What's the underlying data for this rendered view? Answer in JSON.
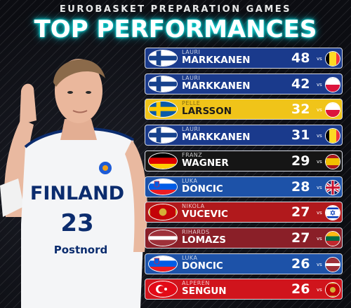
{
  "header": {
    "supertitle": "EUROBASKET PREPARATION GAMES",
    "title": "TOP PERFORMANCES"
  },
  "player": {
    "jersey_team": "FINLAND",
    "jersey_number": "23",
    "sponsor": "Postnord"
  },
  "performances": [
    {
      "first": "LAURI",
      "last": "MARKKANEN",
      "points": "48",
      "vs": "vs",
      "flag": "finland-flag-icon",
      "opponent": "belgium-flag-icon",
      "bg": "#1a3a8c"
    },
    {
      "first": "LAURI",
      "last": "MARKKANEN",
      "points": "42",
      "vs": "vs",
      "flag": "finland-flag-icon",
      "opponent": "poland-flag-icon",
      "bg": "#1a3a8c"
    },
    {
      "first": "PELLE",
      "last": "LARSSON",
      "points": "32",
      "vs": "vs",
      "flag": "sweden-flag-icon",
      "opponent": "poland-flag-icon",
      "bg": "#f0c419"
    },
    {
      "first": "LAURI",
      "last": "MARKKANEN",
      "points": "31",
      "vs": "vs",
      "flag": "finland-flag-icon",
      "opponent": "belgium-flag-icon",
      "bg": "#1a3a8c"
    },
    {
      "first": "FRANZ",
      "last": "WAGNER",
      "points": "29",
      "vs": "vs",
      "flag": "germany-flag-icon",
      "opponent": "spain-flag-icon",
      "bg": "#151515"
    },
    {
      "first": "LUKA",
      "last": "DONCIC",
      "points": "28",
      "vs": "vs",
      "flag": "slovenia-flag-icon",
      "opponent": "great-britain-flag-icon",
      "bg": "#1d52a8"
    },
    {
      "first": "NIKOLA",
      "last": "VUCEVIC",
      "points": "27",
      "vs": "vs",
      "flag": "montenegro-flag-icon",
      "opponent": "israel-flag-icon",
      "bg": "#b1191c"
    },
    {
      "first": "RIHARDS",
      "last": "LOMAZS",
      "points": "27",
      "vs": "vs",
      "flag": "latvia-flag-icon",
      "opponent": "lithuania-flag-icon",
      "bg": "#8a1f28"
    },
    {
      "first": "LUKA",
      "last": "DONCIC",
      "points": "26",
      "vs": "vs",
      "flag": "slovenia-flag-icon",
      "opponent": "latvia-flag-icon",
      "bg": "#1d52a8"
    },
    {
      "first": "ALPEREN",
      "last": "SENGUN",
      "points": "26",
      "vs": "vs",
      "flag": "turkey-flag-icon",
      "opponent": "montenegro-flag-icon",
      "bg": "#d0141c"
    }
  ]
}
